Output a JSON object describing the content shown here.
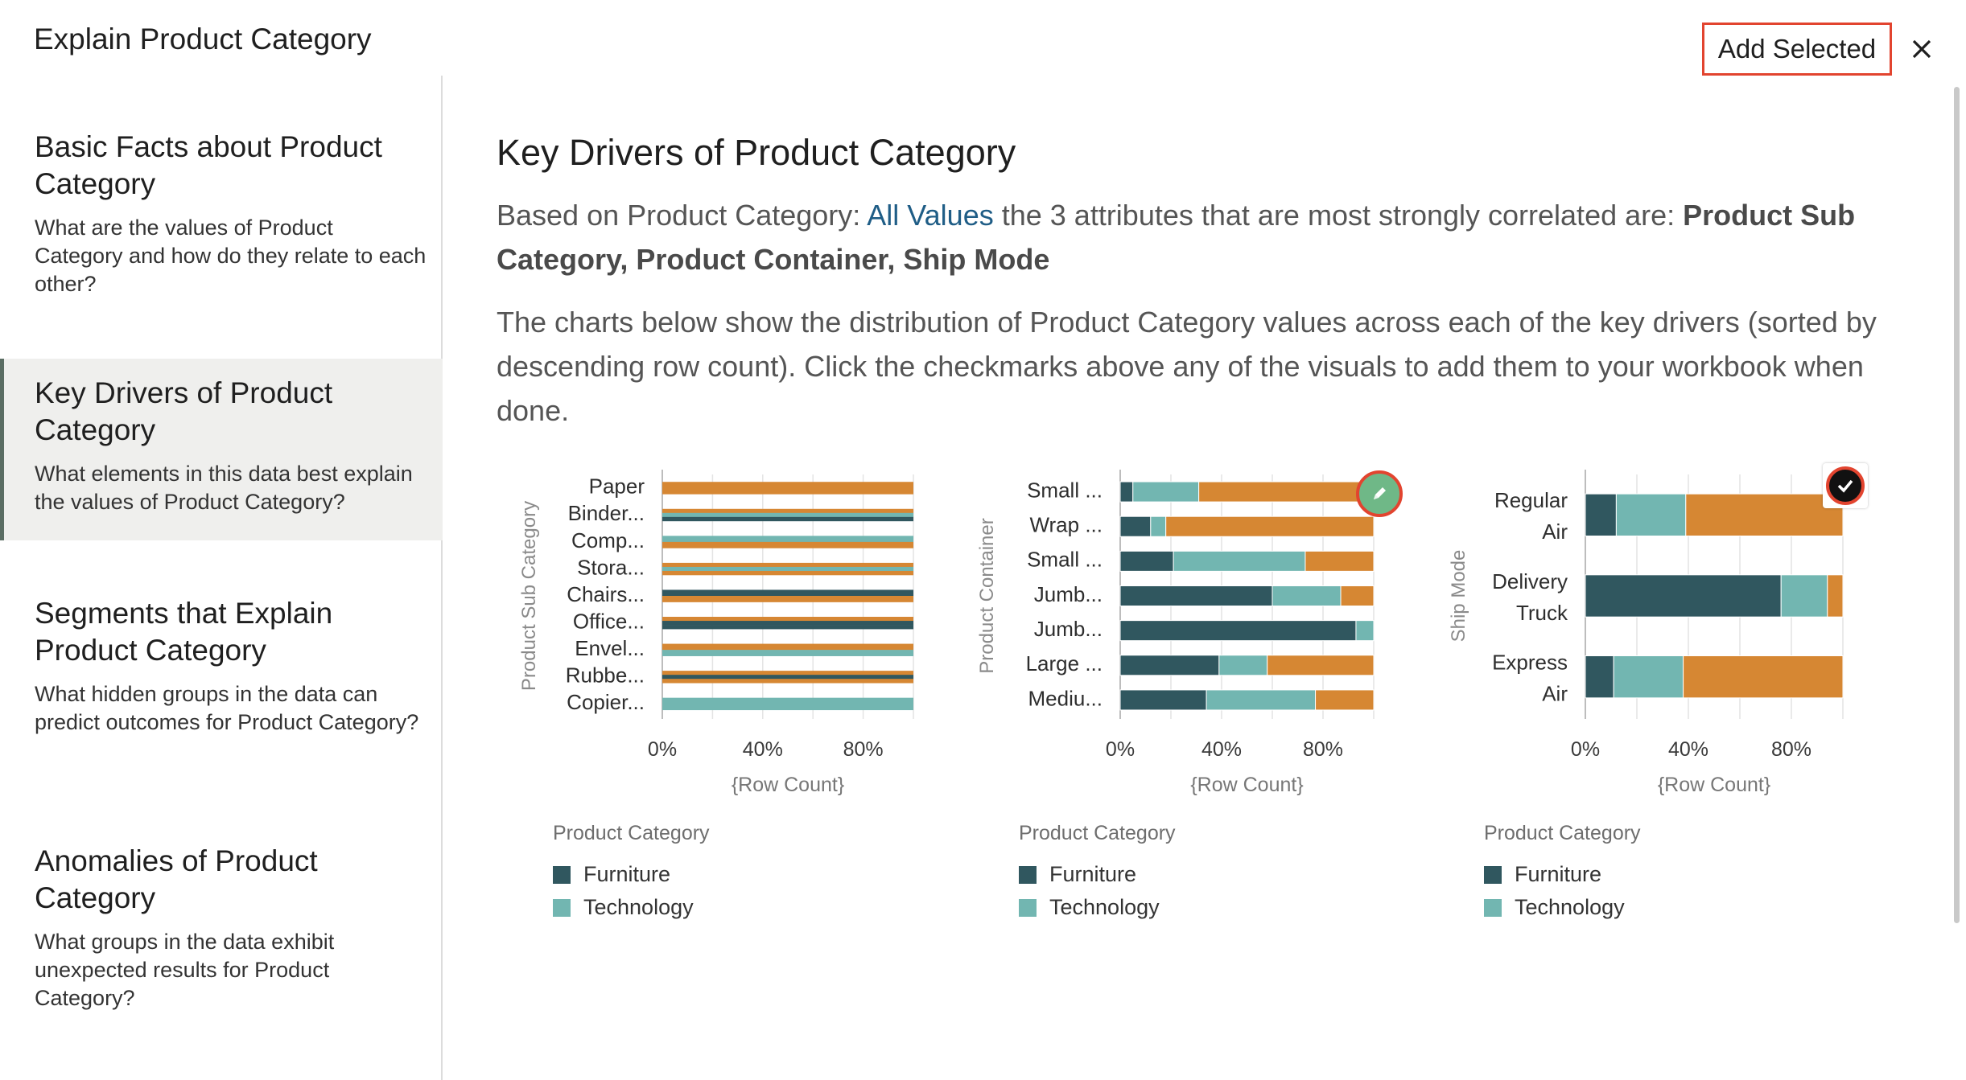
{
  "dialog": {
    "title": "Explain Product Category",
    "add_selected_label": "Add Selected"
  },
  "sidebar": {
    "items": [
      {
        "title": "Basic Facts about Product Category",
        "description": "What are the values of Product Category and how do they relate to each other?"
      },
      {
        "title": "Key Drivers of Product Category",
        "description": "What elements in this data best explain the values of Product Category?",
        "active": true
      },
      {
        "title": "Segments that Explain Product Category",
        "description": "What hidden groups in the data can predict outcomes for Product Category?"
      },
      {
        "title": "Anomalies of Product Category",
        "description": "What groups in the data exhibit unexpected results for Product Category?"
      }
    ]
  },
  "main": {
    "title": "Key Drivers of Product Category",
    "intro_prefix": "Based on Product Category: ",
    "intro_link": "All Values",
    "intro_middle": " the 3 attributes that are most strongly correlated are: ",
    "intro_bold": "Product Sub Category, Product Container, Ship Mode",
    "description": "The charts below show the distribution of Product Category values across each of the key drivers (sorted by descending row count). Click the checkmarks above any of the visuals to add them to your workbook when done."
  },
  "colors": {
    "furniture": "#30575f",
    "technology": "#72b6b1",
    "office_supplies": "#d68733",
    "accent_red": "#e2442f",
    "edit_badge": "#6fb887",
    "check_badge": "#111111"
  },
  "chart_data": [
    {
      "type": "bar",
      "orientation": "horizontal",
      "stacked": "percent",
      "ylabel": "Product Sub Category",
      "xlabel": "{Row Count}",
      "xticks": [
        "0%",
        "40%",
        "80%"
      ],
      "categories": [
        "Paper",
        "Binder...",
        "Comp...",
        "Stora...",
        "Chairs...",
        "Office...",
        "Envel...",
        "Rubbe...",
        "Copier..."
      ],
      "series": [
        {
          "name": "Furniture",
          "values": [
            0,
            0,
            0,
            0,
            100,
            50,
            0,
            0,
            0
          ]
        },
        {
          "name": "Technology",
          "values": [
            0,
            0,
            100,
            0,
            0,
            0,
            0,
            0,
            100
          ]
        },
        {
          "name": "",
          "values": [
            100,
            100,
            0,
            100,
            0,
            50,
            100,
            100,
            0
          ]
        }
      ],
      "bar_fills": [
        [
          "office_supplies"
        ],
        [
          "office_supplies",
          "technology",
          "furniture"
        ],
        [
          "technology",
          "office_supplies"
        ],
        [
          "office_supplies",
          "technology",
          "office_supplies"
        ],
        [
          "furniture",
          "office_supplies"
        ],
        [
          "office_supplies",
          "furniture",
          "furniture"
        ],
        [
          "office_supplies",
          "technology"
        ],
        [
          "office_supplies",
          "furniture",
          "office_supplies"
        ],
        [
          "technology"
        ]
      ],
      "legend_title": "Product Category",
      "legend": [
        "Furniture",
        "Technology"
      ]
    },
    {
      "type": "bar",
      "orientation": "horizontal",
      "stacked": "percent",
      "ylabel": "Product Container",
      "xlabel": "{Row Count}",
      "xticks": [
        "0%",
        "40%",
        "80%"
      ],
      "categories": [
        "Small ...",
        "Wrap ...",
        "Small ...",
        "Jumb...",
        "Jumb...",
        "Large ...",
        "Mediu..."
      ],
      "series": [
        {
          "name": "Furniture",
          "values": [
            5,
            12,
            21,
            60,
            93,
            39,
            34
          ]
        },
        {
          "name": "Technology",
          "values": [
            26,
            6,
            52,
            27,
            7,
            19,
            43
          ]
        },
        {
          "name": "",
          "values": [
            69,
            82,
            27,
            13,
            0,
            42,
            23
          ]
        }
      ],
      "legend_title": "Product Category",
      "legend": [
        "Furniture",
        "Technology"
      ]
    },
    {
      "type": "bar",
      "orientation": "horizontal",
      "stacked": "percent",
      "ylabel": "Ship Mode",
      "xlabel": "{Row Count}",
      "xticks": [
        "0%",
        "40%",
        "80%"
      ],
      "categories": [
        [
          "Regular",
          "Air"
        ],
        [
          "Delivery",
          "Truck"
        ],
        [
          "Express",
          "Air"
        ]
      ],
      "series": [
        {
          "name": "Furniture",
          "values": [
            12,
            76,
            11
          ]
        },
        {
          "name": "Technology",
          "values": [
            27,
            18,
            27
          ]
        },
        {
          "name": "",
          "values": [
            61,
            6,
            62
          ]
        }
      ],
      "legend_title": "Product Category",
      "legend": [
        "Furniture",
        "Technology"
      ]
    }
  ]
}
